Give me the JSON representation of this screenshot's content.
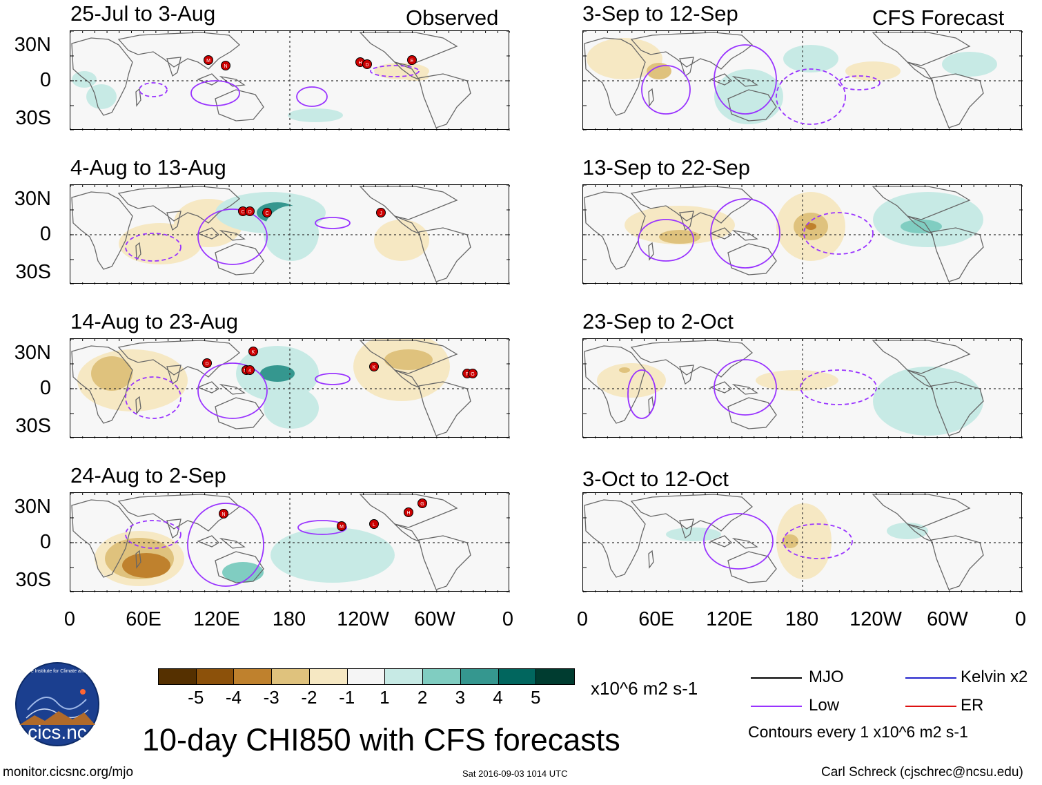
{
  "panels": [
    {
      "title": "25-Jul to 3-Aug",
      "tag": "Observed",
      "storms": [
        "M",
        "N",
        "H",
        "D",
        "E"
      ],
      "lows": [
        "low-1",
        "low-2",
        "low-3",
        "low-4"
      ]
    },
    {
      "title": "3-Sep to 12-Sep",
      "tag": "CFS Forecast",
      "storms": [],
      "lows": [
        "low-1",
        "low-2"
      ]
    },
    {
      "title": "4-Aug to 13-Aug",
      "tag": "",
      "storms": [
        "C",
        "O",
        "C",
        "J"
      ],
      "lows": [
        "low-1",
        "low-2"
      ]
    },
    {
      "title": "13-Sep to 22-Sep",
      "tag": "",
      "storms": [],
      "lows": [
        "low-1",
        "low-2"
      ]
    },
    {
      "title": "14-Aug to 23-Aug",
      "tag": "",
      "storms": [
        "D",
        "K",
        "Mi",
        "4",
        "K",
        "F",
        "G"
      ],
      "lows": [
        "low-1",
        "low-2"
      ]
    },
    {
      "title": "23-Sep to 2-Oct",
      "tag": "",
      "storms": [],
      "lows": [
        "low-1",
        "low-2"
      ]
    },
    {
      "title": "24-Aug to 2-Sep",
      "tag": "",
      "storms": [
        "N",
        "M",
        "L",
        "H",
        "G"
      ],
      "lows": [
        "low-1",
        "low-2"
      ]
    },
    {
      "title": "3-Oct to 12-Oct",
      "tag": "",
      "storms": [],
      "lows": [
        "low-1",
        "low-2"
      ]
    }
  ],
  "y_labels": [
    "30N",
    "0",
    "30S"
  ],
  "x_labels": [
    "0",
    "60E",
    "120E",
    "180",
    "120W",
    "60W",
    "0"
  ],
  "colorbar": {
    "colors": [
      "#553000",
      "#8c510a",
      "#bf812d",
      "#dfc27d",
      "#f6e8c3",
      "#f5f5f5",
      "#c7eae5",
      "#80cdc1",
      "#35978f",
      "#01665e",
      "#003c30"
    ],
    "ticks": [
      "-5",
      "-4",
      "-3",
      "-2",
      "-1",
      "1",
      "2",
      "3",
      "4",
      "5"
    ],
    "units": "x10^6 m2 s-1"
  },
  "legend": {
    "items": [
      {
        "label": "MJO",
        "color": "#000000"
      },
      {
        "label": "Kelvin x2",
        "color": "#2222cc"
      },
      {
        "label": "Low",
        "color": "#9933ff"
      },
      {
        "label": "ER",
        "color": "#dd1111"
      }
    ],
    "note": "Contours every 1 x10^6 m2 s-1"
  },
  "logo_text": "cics.nc",
  "logo_ring": "Cooperative Institute for Climate and Satellites",
  "main_title": "10-day CHI850 with CFS forecasts",
  "footer": {
    "left": "monitor.cicsnc.org/mjo",
    "center": "Sat 2016-09-03 1014 UTC",
    "right": "Carl Schreck (cjschrec@ncsu.edu)"
  }
}
